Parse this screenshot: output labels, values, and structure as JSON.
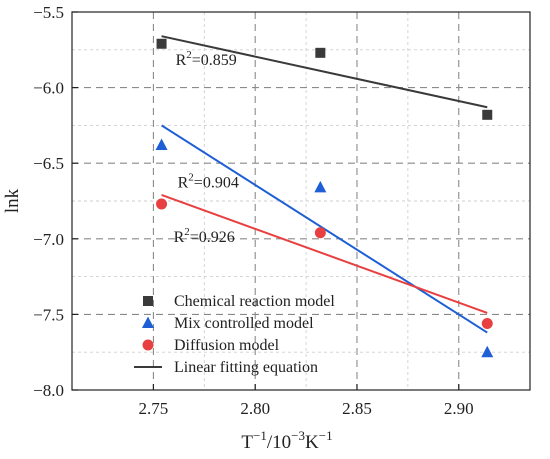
{
  "chart_data": {
    "type": "scatter",
    "xlabel_main": "T",
    "xlabel_sup1": "−1",
    "xlabel_mid": "/10",
    "xlabel_sup2": "−3",
    "xlabel_unit": "K",
    "xlabel_sup3": "−1",
    "ylabel": "lnk",
    "xlim": [
      2.71,
      2.935
    ],
    "ylim": [
      -8.0,
      -5.5
    ],
    "xticks": [
      2.75,
      2.8,
      2.85,
      2.9
    ],
    "xtick_labels": [
      "2.75",
      "2.80",
      "2.85",
      "2.90"
    ],
    "yticks": [
      -8.0,
      -7.5,
      -7.0,
      -6.5,
      -6.0,
      -5.5
    ],
    "ytick_labels": [
      "−8.0",
      "−7.5",
      "−7.0",
      "−6.5",
      "−6.0",
      "−5.5"
    ],
    "grid": true,
    "legend_position": "bottom-left",
    "series": [
      {
        "name": "Chemical reaction model",
        "marker": "square",
        "color": "#3a3a3a",
        "x": [
          2.754,
          2.832,
          2.914
        ],
        "y": [
          -5.71,
          -5.77,
          -6.18
        ],
        "fit": {
          "x": [
            2.754,
            2.914
          ],
          "y": [
            -5.66,
            -6.13
          ]
        },
        "r2_prefix": "R",
        "r2_sup": "2",
        "r2_value": "=0.859",
        "r2_anchor": [
          2.755,
          -5.81
        ]
      },
      {
        "name": "Mix controlled model",
        "marker": "triangle",
        "color": "#1f5fd6",
        "x": [
          2.754,
          2.832,
          2.914
        ],
        "y": [
          -6.38,
          -6.66,
          -7.75
        ],
        "fit": {
          "x": [
            2.754,
            2.914
          ],
          "y": [
            -6.25,
            -7.62
          ]
        },
        "r2_prefix": "R",
        "r2_sup": "2",
        "r2_value": "=0.904",
        "r2_anchor": [
          2.756,
          -6.62
        ]
      },
      {
        "name": "Diffusion model",
        "marker": "circle",
        "color": "#e84040",
        "x": [
          2.754,
          2.832,
          2.914
        ],
        "y": [
          -6.77,
          -6.96,
          -7.56
        ],
        "fit": {
          "x": [
            2.754,
            2.914
          ],
          "y": [
            -6.71,
            -7.49
          ]
        },
        "r2_prefix": "R",
        "r2_sup": "2",
        "r2_value": "=0.926",
        "r2_anchor": [
          2.754,
          -6.98
        ]
      }
    ],
    "legend": [
      {
        "label": "Chemical reaction model",
        "symbol": "square",
        "color": "#3a3a3a"
      },
      {
        "label": "Mix controlled model",
        "symbol": "triangle",
        "color": "#1f5fd6"
      },
      {
        "label": "Diffusion model",
        "symbol": "circle",
        "color": "#e84040"
      },
      {
        "label": "Linear fitting equation",
        "symbol": "line",
        "color": "#3a3a3a"
      }
    ]
  }
}
